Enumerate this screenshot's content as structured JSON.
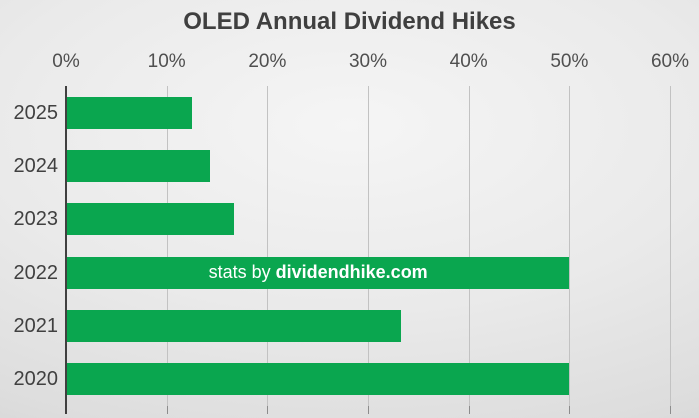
{
  "chart_data": {
    "type": "bar",
    "orientation": "horizontal",
    "title": "OLED Annual Dividend Hikes",
    "categories": [
      "2025",
      "2024",
      "2023",
      "2022",
      "2021",
      "2020"
    ],
    "values": [
      12.5,
      14.3,
      16.7,
      50,
      33.3,
      50
    ],
    "x_ticks": [
      "0%",
      "10%",
      "20%",
      "30%",
      "40%",
      "50%",
      "60%"
    ],
    "x_tick_values": [
      0,
      10,
      20,
      30,
      40,
      50,
      60
    ],
    "xlim": [
      0,
      60
    ],
    "grid": true,
    "legend": false,
    "xlabel": "",
    "ylabel": "",
    "watermark": {
      "text_regular": "stats by ",
      "text_bold": "dividendhike.com",
      "on_category": "2022"
    },
    "colors": {
      "bar": "#0aa64f",
      "title": "#3f3f3f",
      "category_label": "#404040",
      "tick_label": "#4f4f4f",
      "axis_line": "#404040",
      "gridline": "#c2c2c2",
      "tick_mark": "#8c8c8c",
      "watermark_text": "#ffffff"
    }
  }
}
